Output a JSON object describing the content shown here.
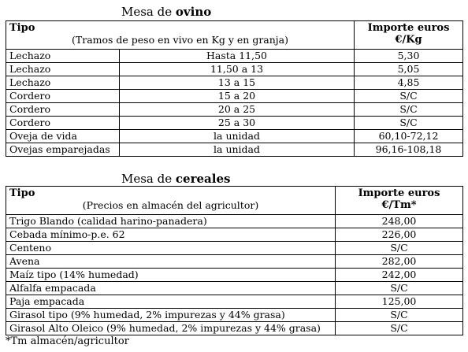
{
  "ovino": {
    "title_prefix": "Mesa de ",
    "title_bold": "ovino",
    "col1_header": "Tipo",
    "col1_sub": "(Tramos de peso en vivo en Kg y en granja)",
    "col3_header_line1": "Importe euros",
    "col3_header_line2": "€/Kg",
    "rows": [
      {
        "tipo": "Lechazo",
        "tramo": "Hasta 11,50",
        "importe": "5,30"
      },
      {
        "tipo": "Lechazo",
        "tramo": "11,50 a 13",
        "importe": "5,05"
      },
      {
        "tipo": "Lechazo",
        "tramo": "13 a 15",
        "importe": "4,85"
      },
      {
        "tipo": "Cordero",
        "tramo": "15 a 20",
        "importe": "S/C"
      },
      {
        "tipo": "Cordero",
        "tramo": "20 a 25",
        "importe": "S/C"
      },
      {
        "tipo": "Cordero",
        "tramo": "25 a 30",
        "importe": "S/C"
      },
      {
        "tipo": "Oveja de vida",
        "tramo": "la unidad",
        "importe": "60,10-72,12"
      },
      {
        "tipo": "Ovejas emparejadas",
        "tramo": "la unidad",
        "importe": "96,16-108,18"
      }
    ]
  },
  "cereales": {
    "title_prefix": "Mesa de ",
    "title_bold": "cereales",
    "col1_header": "Tipo",
    "col1_sub": "(Precios en almacén del agricultor)",
    "col2_header_line1": "Importe euros",
    "col2_header_line2": "€/Tm*",
    "rows": [
      {
        "tipo": "Trigo Blando (calidad harino-panadera)",
        "importe": "248,00"
      },
      {
        "tipo": "Cebada mínimo-p.e. 62",
        "importe": "226,00"
      },
      {
        "tipo": "Centeno",
        "importe": "S/C"
      },
      {
        "tipo": "Avena",
        "importe": "282,00"
      },
      {
        "tipo": "Maíz tipo (14% humedad)",
        "importe": "242,00"
      },
      {
        "tipo": "Alfalfa empacada",
        "importe": "S/C"
      },
      {
        "tipo": "Paja empacada",
        "importe": "125,00"
      },
      {
        "tipo": "Girasol tipo (9% humedad, 2% impurezas y 44% grasa)",
        "importe": "S/C"
      },
      {
        "tipo": "Girasol Alto Oleico (9% humedad, 2% impurezas y 44% grasa)",
        "importe": "S/C"
      }
    ]
  },
  "footnote": "*Tm almacén/agricultor"
}
